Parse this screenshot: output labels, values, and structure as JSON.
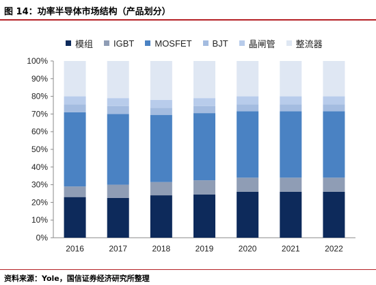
{
  "figure": {
    "title": "图 14：功率半导体市场结构（产品划分）",
    "source": "资料来源：Yole，国信证券经济研究所整理"
  },
  "colors": {
    "header_rule": "#b52025"
  },
  "chart_data": {
    "type": "bar",
    "stacked": true,
    "categories": [
      "2016",
      "2017",
      "2018",
      "2019",
      "2020",
      "2021",
      "2022"
    ],
    "y_tick_labels": [
      "0%",
      "10%",
      "20%",
      "30%",
      "40%",
      "50%",
      "60%",
      "70%",
      "80%",
      "90%",
      "100%"
    ],
    "ylim": [
      0,
      100
    ],
    "y_unit": "%",
    "grid": false,
    "legend_position": "top",
    "series": [
      {
        "name": "模组",
        "color": "#0d2a5b",
        "values": [
          23,
          22.5,
          24,
          24.5,
          26,
          26,
          26
        ]
      },
      {
        "name": "IGBT",
        "color": "#8f9db5",
        "values": [
          6,
          7.5,
          7.5,
          8,
          8,
          8,
          8
        ]
      },
      {
        "name": "MOSFET",
        "color": "#4a82c3",
        "values": [
          42,
          40,
          38,
          38,
          37.5,
          37.5,
          37.5
        ]
      },
      {
        "name": "BJT",
        "color": "#a4bce0",
        "values": [
          4.5,
          4.5,
          4,
          4,
          4,
          4,
          4
        ]
      },
      {
        "name": "晶闸管",
        "color": "#b8cceb",
        "values": [
          4.5,
          4.5,
          4.5,
          4.5,
          4.5,
          4.5,
          4.5
        ]
      },
      {
        "name": "整流器",
        "color": "#dfe7f3",
        "values": [
          20,
          21,
          22,
          21,
          20,
          20,
          20
        ]
      }
    ]
  }
}
